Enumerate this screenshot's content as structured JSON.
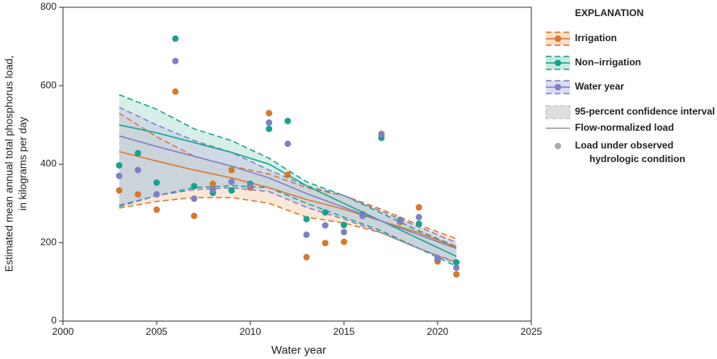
{
  "chart_data": {
    "type": "line",
    "y_label": [
      "Estimated mean annual total phosphorus load,",
      "in kilograms per day"
    ],
    "x_label": "Water year",
    "xlim": [
      2000,
      2025
    ],
    "xticks": [
      2000,
      2005,
      2010,
      2015,
      2020,
      2025
    ],
    "ylim": [
      0,
      800
    ],
    "yticks": [
      0,
      200,
      400,
      600,
      800
    ],
    "legend_title": "EXPLANATION",
    "legend_ci": "95-percent confidence interval",
    "legend_trend": "Flow-normalized load",
    "legend_points": [
      "Load under observed",
      "hydrologic condition"
    ],
    "x": [
      2003,
      2004,
      2005,
      2006,
      2007,
      2008,
      2009,
      2010,
      2011,
      2012,
      2013,
      2014,
      2015,
      2016,
      2017,
      2018,
      2019,
      2020,
      2021
    ],
    "trend_x": [
      2003,
      2005,
      2007,
      2009,
      2011,
      2013,
      2015,
      2017,
      2019,
      2021
    ],
    "series": [
      {
        "name": "Irrigation",
        "color": "#d9772b",
        "band_color": "#f3c9a3",
        "values": [
          333,
          323,
          284,
          585,
          268,
          350,
          385,
          340,
          530,
          373,
          163,
          199,
          202,
          270,
          477,
          252,
          290,
          152,
          119
        ],
        "flow_normalized": [
          432,
          408,
          385,
          365,
          340,
          310,
          285,
          255,
          225,
          188
        ],
        "ci_lower": [
          288,
          305,
          315,
          315,
          300,
          265,
          250,
          225,
          185,
          148
        ],
        "ci_upper": [
          530,
          470,
          420,
          395,
          375,
          340,
          320,
          285,
          245,
          210
        ]
      },
      {
        "name": "Non–irrigation",
        "color": "#14a38b",
        "band_color": "#a7dccd",
        "values": [
          397,
          428,
          353,
          720,
          344,
          327,
          333,
          350,
          490,
          510,
          260,
          277,
          245,
          272,
          467,
          258,
          248,
          158,
          150
        ],
        "flow_normalized": [
          500,
          480,
          455,
          430,
          400,
          345,
          300,
          255,
          210,
          165
        ],
        "ci_lower": [
          292,
          320,
          340,
          345,
          340,
          300,
          265,
          230,
          185,
          140
        ],
        "ci_upper": [
          577,
          540,
          490,
          460,
          415,
          355,
          320,
          275,
          230,
          190
        ]
      },
      {
        "name": "Water year",
        "color": "#7f7fc6",
        "band_color": "#c4c4e6",
        "values": [
          370,
          385,
          323,
          663,
          312,
          335,
          355,
          345,
          506,
          452,
          220,
          244,
          227,
          268,
          475,
          255,
          265,
          160,
          136
        ],
        "flow_normalized": [
          472,
          445,
          420,
          395,
          365,
          325,
          290,
          255,
          220,
          185
        ],
        "ci_lower": [
          295,
          320,
          335,
          340,
          330,
          290,
          260,
          225,
          185,
          150
        ],
        "ci_upper": [
          545,
          500,
          460,
          430,
          385,
          345,
          320,
          280,
          240,
          200
        ]
      }
    ]
  }
}
